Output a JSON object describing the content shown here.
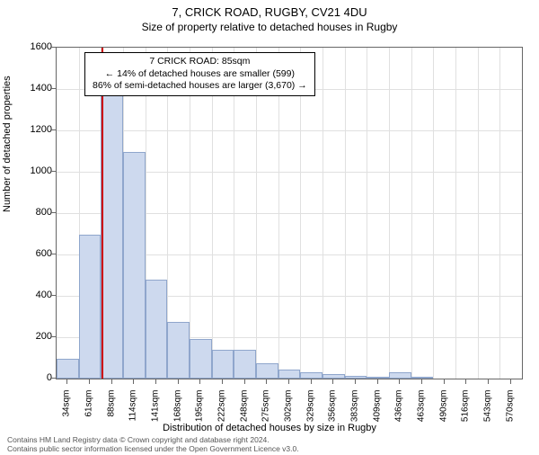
{
  "title": "7, CRICK ROAD, RUGBY, CV21 4DU",
  "subtitle": "Size of property relative to detached houses in Rugby",
  "ylabel": "Number of detached properties",
  "xlabel": "Distribution of detached houses by size in Rugby",
  "annotation": {
    "line1": "7 CRICK ROAD: 85sqm",
    "line2": "← 14% of detached houses are smaller (599)",
    "line3": "86% of semi-detached houses are larger (3,670) →"
  },
  "footer": {
    "line1": "Contains HM Land Registry data © Crown copyright and database right 2024.",
    "line2": "Contains public sector information licensed under the Open Government Licence v3.0."
  },
  "chart": {
    "type": "histogram",
    "ylim": [
      0,
      1600
    ],
    "yticks": [
      0,
      200,
      400,
      600,
      800,
      1000,
      1200,
      1400,
      1600
    ],
    "xticks_labels": [
      "34sqm",
      "61sqm",
      "88sqm",
      "114sqm",
      "141sqm",
      "168sqm",
      "195sqm",
      "222sqm",
      "248sqm",
      "275sqm",
      "302sqm",
      "329sqm",
      "356sqm",
      "383sqm",
      "409sqm",
      "436sqm",
      "463sqm",
      "490sqm",
      "516sqm",
      "543sqm",
      "570sqm"
    ],
    "bars": [
      95,
      695,
      1395,
      1095,
      480,
      275,
      190,
      140,
      140,
      75,
      45,
      30,
      20,
      15,
      10,
      30,
      8,
      0,
      0,
      0,
      0
    ],
    "bar_color": "#cdd9ee",
    "bar_border": "#8fa6cc",
    "grid_color": "#e0e0e0",
    "background_color": "#ffffff",
    "marker_position_bin": 2,
    "marker_color": "#cc0000"
  }
}
